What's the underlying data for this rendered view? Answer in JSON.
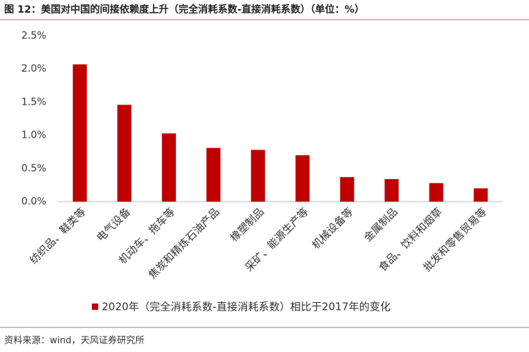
{
  "chart_data": {
    "type": "bar",
    "title": "图 12：美国对中国的间接依赖度上升（完全消耗系数-直接消耗系数）（单位：%）",
    "categories": [
      "纺织品、鞋类等",
      "电气设备",
      "机动车、拖车等",
      "焦炭和精炼石油产品",
      "橡塑制品",
      "采矿、能源生产等",
      "机械设备等",
      "金属制品",
      "食品、饮料和烟草",
      "批发和零售贸易等"
    ],
    "series": [
      {
        "name": "2020年（完全消耗系数-直接消耗系数）相比于2017年的变化",
        "color": "#c00000",
        "values": [
          2.07,
          1.46,
          1.03,
          0.81,
          0.78,
          0.7,
          0.37,
          0.34,
          0.28,
          0.2
        ]
      }
    ],
    "ylim": [
      0,
      2.5
    ],
    "yticks": [
      {
        "value": 0,
        "label": "0.0%"
      },
      {
        "value": 0.5,
        "label": "0.5%"
      },
      {
        "value": 1,
        "label": "1.0%"
      },
      {
        "value": 1.5,
        "label": "1.5%"
      },
      {
        "value": 2,
        "label": "2.0%"
      },
      {
        "value": 2.5,
        "label": "2.5%"
      }
    ],
    "grid": false,
    "source": "资料来源：wind，天风证券研究所"
  }
}
